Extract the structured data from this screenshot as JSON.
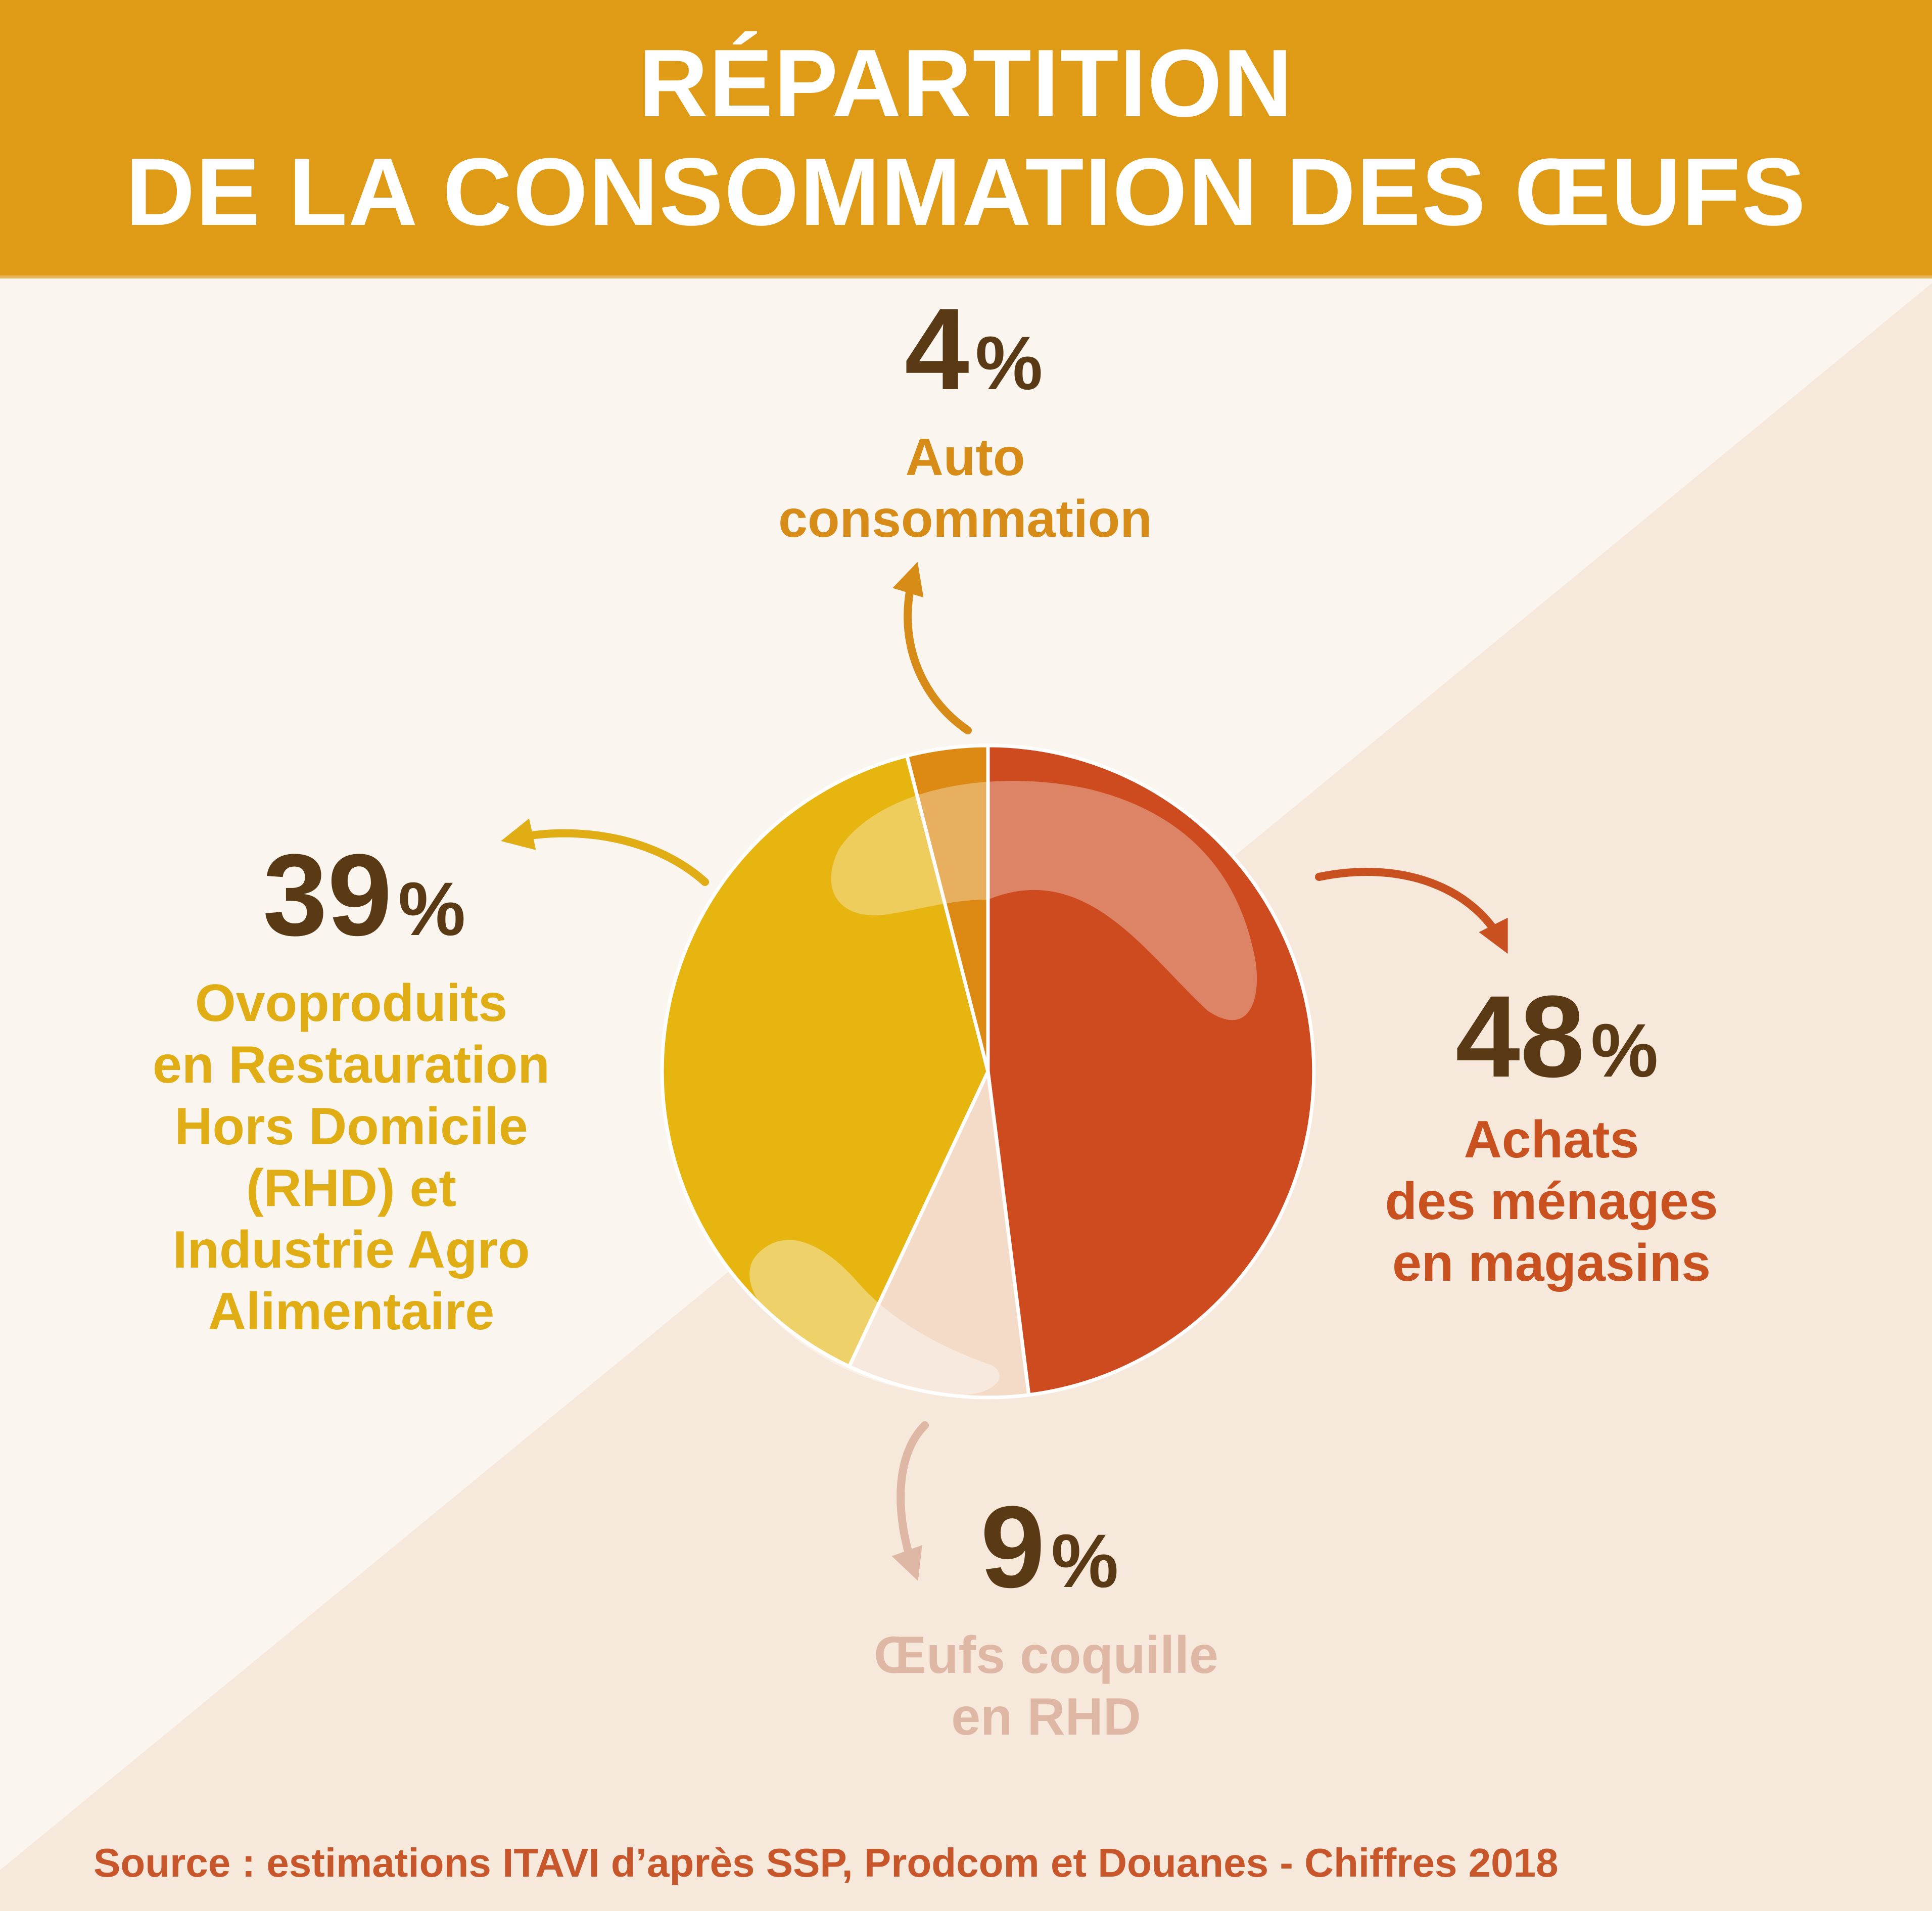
{
  "title": {
    "line1": "RÉPARTITION",
    "line2": "DE LA CONSOMMATION DES ŒUFS"
  },
  "chart_data": {
    "type": "pie",
    "slices": [
      {
        "label_lines": [
          "Achats",
          "des ménages",
          "en magasins"
        ],
        "value": 48,
        "value_text": "48",
        "unit": "%",
        "color": "#cd4b1f",
        "label_color": "#c9511f"
      },
      {
        "label_lines": [
          "Œufs coquille",
          "en RHD"
        ],
        "value": 9,
        "value_text": "9",
        "unit": "%",
        "color": "#f3dbc8",
        "label_color": "#dfb7a5"
      },
      {
        "label_lines": [
          "Ovoproduits",
          "en Restauration",
          "Hors Domicile",
          "(RHD) et",
          "Industrie Agro",
          "Alimentaire"
        ],
        "value": 39,
        "value_text": "39",
        "unit": "%",
        "color": "#e6b510",
        "label_color": "#e1ad14"
      },
      {
        "label_lines": [
          "Auto",
          "consommation"
        ],
        "value": 4,
        "value_text": "4",
        "unit": "%",
        "color": "#dd8a14",
        "label_color": "#d88c18"
      }
    ],
    "start": "top",
    "direction": "clockwise"
  },
  "source": "Source : estimations ITAVI d’après SSP, Prodcom et Douanes - Chiffres 2018",
  "colors": {
    "title_band": "#df9a16",
    "background_light": "#fbf5ef",
    "background_dark": "#f7e8dc",
    "number": "#5a3a14",
    "source": "#c7572a"
  }
}
